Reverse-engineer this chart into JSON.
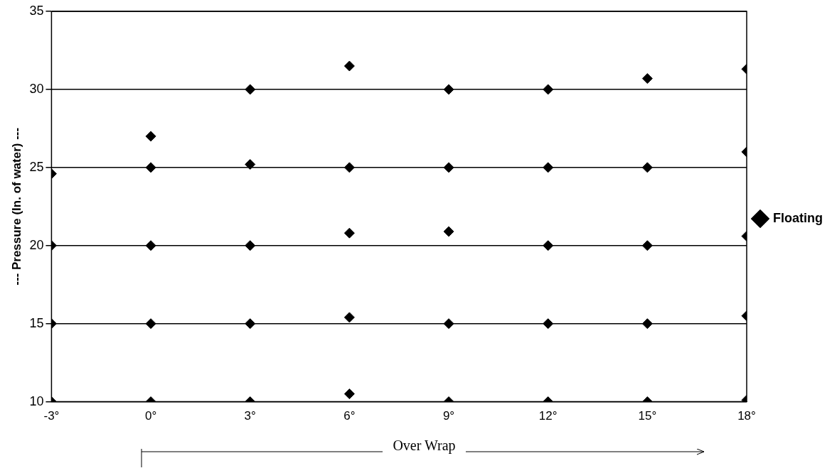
{
  "chart_data": {
    "type": "scatter",
    "xlabel": "Over Wrap",
    "ylabel": "--- Pressure (In. of water) ---",
    "xlim": [
      -3,
      18
    ],
    "xticks": [
      {
        "value": -3,
        "label": "-3°"
      },
      {
        "value": 0,
        "label": "0°"
      },
      {
        "value": 3,
        "label": "3°"
      },
      {
        "value": 6,
        "label": "6°"
      },
      {
        "value": 9,
        "label": "9°"
      },
      {
        "value": 12,
        "label": "12°"
      },
      {
        "value": 15,
        "label": "15°"
      },
      {
        "value": 18,
        "label": "18°"
      }
    ],
    "ylim": [
      10,
      35
    ],
    "yticks": [
      10,
      15,
      20,
      25,
      30,
      35
    ],
    "grid": "y",
    "legend": "right",
    "marker": "diamond",
    "series": [
      {
        "name": "Floating",
        "color": "#000000",
        "x": [
          -3,
          -3,
          -3,
          -3,
          0,
          0,
          0,
          0,
          0,
          3,
          3,
          3,
          3,
          3,
          6,
          6,
          6,
          6,
          6,
          9,
          9,
          9,
          9,
          9,
          12,
          12,
          12,
          12,
          12,
          15,
          15,
          15,
          15,
          15,
          18,
          18,
          18,
          18,
          18
        ],
        "values": [
          24.6,
          20,
          15,
          10,
          27,
          25,
          20,
          15,
          10,
          30,
          25.2,
          20,
          15,
          10,
          31.5,
          25,
          20.8,
          15.4,
          10.5,
          30,
          25,
          20.9,
          15,
          10,
          30,
          25,
          20,
          15,
          10,
          30.7,
          25,
          20,
          15,
          10,
          31.3,
          26,
          20.6,
          15.5,
          10.1
        ]
      }
    ]
  }
}
